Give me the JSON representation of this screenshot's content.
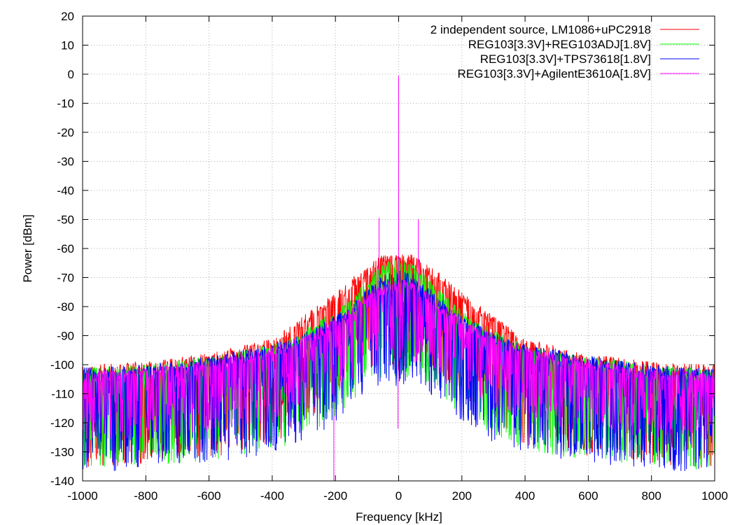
{
  "chart_data": {
    "type": "line",
    "title": "",
    "xlabel": "Frequency [kHz]",
    "ylabel": "Power [dBm]",
    "xlim": [
      -1000,
      1000
    ],
    "ylim": [
      -140,
      20
    ],
    "xticks": [
      -1000,
      -800,
      -600,
      -400,
      -200,
      0,
      200,
      400,
      600,
      800,
      1000
    ],
    "yticks": [
      -140,
      -130,
      -120,
      -110,
      -100,
      -90,
      -80,
      -70,
      -60,
      -50,
      -40,
      -30,
      -20,
      -10,
      0,
      10,
      20
    ],
    "grid": true,
    "legend_position": "top-right",
    "x": [
      -1000,
      -800,
      -600,
      -400,
      -300,
      -200,
      -150,
      -100,
      -50,
      0,
      50,
      100,
      150,
      200,
      300,
      400,
      600,
      800,
      1000
    ],
    "series": [
      {
        "name": "2 independent source, LM1086+uPC2918",
        "color": "#ff0000",
        "upper": [
          -100,
          -99,
          -96,
          -91,
          -83,
          -75,
          -70,
          -66,
          -62,
          -62,
          -62,
          -66,
          -70,
          -75,
          -83,
          -91,
          -96,
          -99,
          -100
        ],
        "lower": [
          -128,
          -126,
          -124,
          -120,
          -112,
          -103,
          -98,
          -94,
          -92,
          -95,
          -92,
          -94,
          -98,
          -103,
          -112,
          -120,
          -124,
          -126,
          -128
        ]
      },
      {
        "name": "REG103[3.3V]+REG103ADJ[1.8V]",
        "color": "#00ff00",
        "upper": [
          -101,
          -100,
          -97,
          -93,
          -88,
          -81,
          -76,
          -71,
          -65,
          -63,
          -65,
          -71,
          -76,
          -81,
          -88,
          -93,
          -97,
          -100,
          -101
        ],
        "lower": [
          -129,
          -127,
          -125,
          -122,
          -117,
          -110,
          -105,
          -100,
          -96,
          -98,
          -96,
          -100,
          -105,
          -110,
          -117,
          -122,
          -125,
          -127,
          -129
        ]
      },
      {
        "name": "REG103[3.3V]+TPS73618[1.8V]",
        "color": "#0000ff",
        "upper": [
          -101,
          -100,
          -97,
          -93,
          -89,
          -83,
          -79,
          -74,
          -69,
          -67,
          -69,
          -74,
          -79,
          -83,
          -89,
          -93,
          -97,
          -100,
          -101
        ],
        "lower": [
          -130,
          -128,
          -126,
          -123,
          -119,
          -112,
          -107,
          -102,
          -98,
          -100,
          -98,
          -102,
          -107,
          -112,
          -119,
          -123,
          -126,
          -128,
          -130
        ]
      },
      {
        "name": "REG103[3.3V]+AgilentE3610A[1.8V]",
        "color": "#ff00ff",
        "upper": [
          -102,
          -101,
          -98,
          -94,
          -90,
          -84,
          -80,
          -75,
          -72,
          -70,
          -72,
          -75,
          -80,
          -84,
          -90,
          -94,
          -98,
          -101,
          -102
        ],
        "lower": [
          -118,
          -117,
          -115,
          -112,
          -108,
          -103,
          -99,
          -95,
          -92,
          -91,
          -92,
          -95,
          -99,
          -103,
          -108,
          -112,
          -115,
          -117,
          -118
        ]
      }
    ],
    "spikes": [
      {
        "x": 0,
        "y": -0.5,
        "color": "#ff00ff"
      },
      {
        "x": -62,
        "y": -49.5,
        "color": "#ff00ff"
      },
      {
        "x": 62,
        "y": -50,
        "color": "#ff00ff"
      },
      {
        "x": -2,
        "y": -122,
        "color": "#ff00ff"
      },
      {
        "x": -205,
        "y": -140,
        "color": "#ff00ff"
      }
    ]
  }
}
